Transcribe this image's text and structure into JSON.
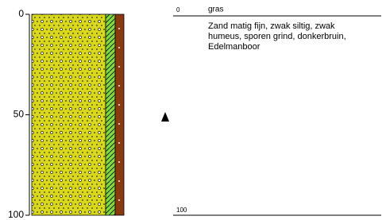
{
  "depth_axis": {
    "range": [
      0,
      100
    ],
    "ticks": [
      0,
      50,
      100
    ]
  },
  "layer": {
    "top": 0,
    "bottom": 100,
    "name": "gras",
    "description": "Zand matig fijn, zwak siltig, zwak humeus, sporen grind, donkerbruin, Edelmanboor"
  }
}
